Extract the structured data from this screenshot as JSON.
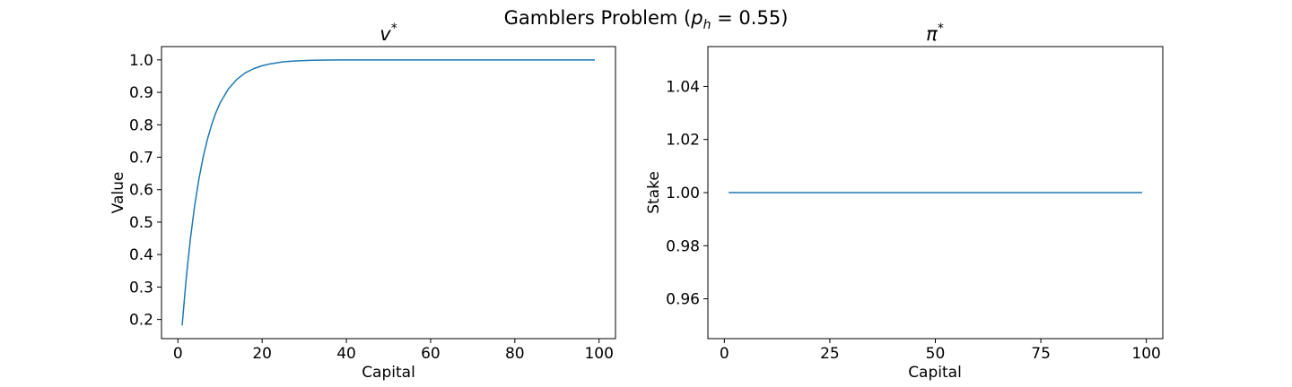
{
  "figure": {
    "suptitle_prefix": "Gamblers Problem (",
    "suptitle_var": "p",
    "suptitle_sub": "h",
    "suptitle_suffix": " = 0.55)"
  },
  "chart_data": [
    {
      "type": "line",
      "title_symbol": "v",
      "title_superscript": "*",
      "xlabel": "Capital",
      "ylabel": "Value",
      "xlim": [
        -3.9,
        103.9
      ],
      "ylim": [
        0.141,
        1.041
      ],
      "xticks": [
        0,
        20,
        40,
        60,
        80,
        100
      ],
      "yticks": [
        0.2,
        0.3,
        0.4,
        0.5,
        0.6,
        0.7,
        0.8,
        0.9,
        1.0
      ],
      "ytick_labels": [
        "0.2",
        "0.3",
        "0.4",
        "0.5",
        "0.6",
        "0.7",
        "0.8",
        "0.9",
        "1.0"
      ],
      "line_color": "#1f77b4",
      "grid": false,
      "x": [
        1,
        2,
        3,
        4,
        5,
        6,
        7,
        8,
        9,
        10,
        12,
        14,
        16,
        18,
        20,
        22,
        25,
        28,
        32,
        36,
        40,
        50,
        60,
        70,
        80,
        90,
        99
      ],
      "y": [
        0.182,
        0.331,
        0.453,
        0.553,
        0.634,
        0.701,
        0.755,
        0.8,
        0.837,
        0.867,
        0.911,
        0.94,
        0.96,
        0.973,
        0.982,
        0.988,
        0.994,
        0.997,
        0.999,
        0.9995,
        1.0,
        1.0,
        1.0,
        1.0,
        1.0,
        1.0,
        1.0
      ]
    },
    {
      "type": "line",
      "title_symbol": "π",
      "title_superscript": "*",
      "xlabel": "Capital",
      "ylabel": "Stake",
      "xlim": [
        -3.9,
        103.9
      ],
      "ylim": [
        0.945,
        1.055
      ],
      "xticks": [
        0,
        25,
        50,
        75,
        100
      ],
      "yticks": [
        0.96,
        0.98,
        1.0,
        1.02,
        1.04
      ],
      "ytick_labels": [
        "0.96",
        "0.98",
        "1.00",
        "1.02",
        "1.04"
      ],
      "line_color": "#1f77b4",
      "grid": false,
      "x": [
        1,
        99
      ],
      "y": [
        1.0,
        1.0
      ]
    }
  ]
}
